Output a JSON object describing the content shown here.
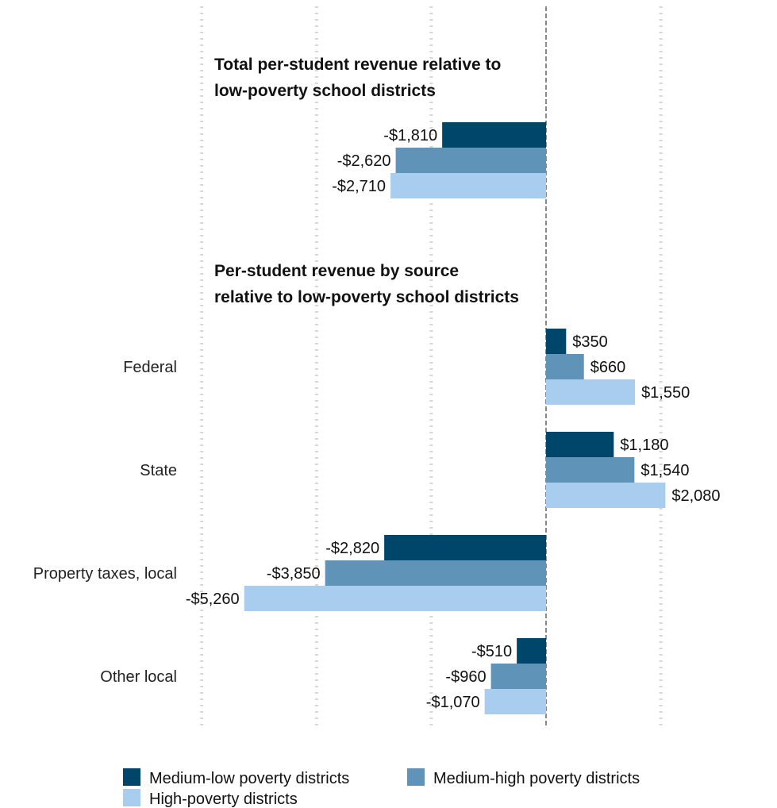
{
  "chart_data": {
    "type": "bar",
    "orientation": "horizontal",
    "grid": true,
    "legend_position": "bottom",
    "xlim": [
      -3000,
      1000
    ],
    "series": [
      {
        "name": "Medium-low poverty districts",
        "color": "#00456a"
      },
      {
        "name": "Medium-high poverty districts",
        "color": "#5f93b8"
      },
      {
        "name": "High-poverty districts",
        "color": "#a8cdef"
      }
    ],
    "sections": [
      {
        "title_lines": [
          "Total per-student revenue relative to",
          "low-poverty school districts"
        ],
        "groups": [
          {
            "category": "",
            "values": [
              -1810,
              -2620,
              -2710
            ],
            "labels": [
              "-$1,810",
              "-$2,620",
              "-$2,710"
            ]
          }
        ]
      },
      {
        "title_lines": [
          "Per-student revenue by source",
          "relative to low-poverty school districts"
        ],
        "groups": [
          {
            "category": "Federal",
            "values": [
              350,
              660,
              1550
            ],
            "labels": [
              "$350",
              "$660",
              "$1,550"
            ]
          },
          {
            "category": "State",
            "values": [
              1180,
              1540,
              2080
            ],
            "labels": [
              "$1,180",
              "$1,540",
              "$2,080"
            ]
          },
          {
            "category": "Property taxes, local",
            "values": [
              -2820,
              -3850,
              -5260
            ],
            "labels": [
              "-$2,820",
              "-$3,850",
              "-$5,260"
            ]
          },
          {
            "category": "Other local",
            "values": [
              -510,
              -960,
              -1070
            ],
            "labels": [
              "-$510",
              "-$960",
              "-$1,070"
            ]
          }
        ]
      }
    ]
  }
}
